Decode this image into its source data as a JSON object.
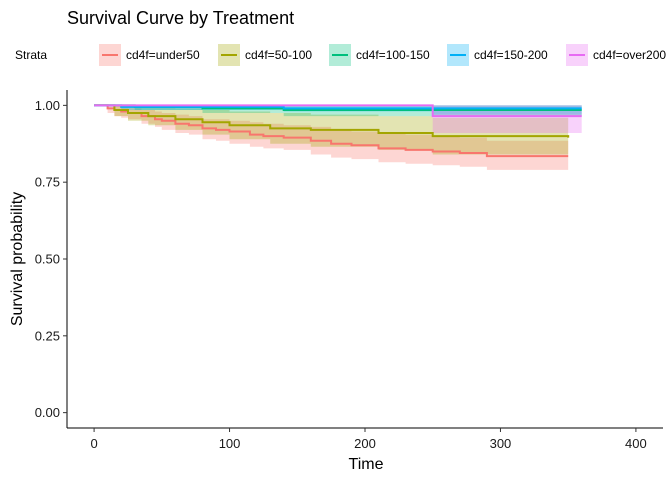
{
  "chart_data": {
    "type": "line",
    "subtype": "kaplan-meier survival curve with confidence bands",
    "title": "Survival Curve by Treatment",
    "xlabel": "Time",
    "ylabel": "Survival probability",
    "xlim": [
      -20,
      420
    ],
    "ylim": [
      -0.05,
      1.05
    ],
    "xticks": [
      0,
      100,
      200,
      300,
      400
    ],
    "yticks": [
      0.0,
      0.25,
      0.5,
      0.75,
      1.0
    ],
    "ytick_labels": [
      "0.00",
      "0.25",
      "0.50",
      "0.75",
      "1.00"
    ],
    "grid": false,
    "legend": {
      "title": "Strata",
      "position": "top"
    },
    "series": [
      {
        "name": "cd4f=under50",
        "color": "#F8766D",
        "time": [
          0,
          10,
          15,
          20,
          25,
          35,
          45,
          50,
          60,
          70,
          80,
          90,
          100,
          115,
          125,
          140,
          160,
          175,
          190,
          210,
          230,
          250,
          270,
          290,
          350
        ],
        "surv": [
          1.0,
          0.99,
          0.985,
          0.98,
          0.975,
          0.965,
          0.955,
          0.95,
          0.94,
          0.935,
          0.925,
          0.92,
          0.915,
          0.905,
          0.9,
          0.895,
          0.885,
          0.875,
          0.87,
          0.86,
          0.855,
          0.85,
          0.845,
          0.835,
          0.835
        ],
        "lower": [
          1.0,
          0.975,
          0.965,
          0.96,
          0.955,
          0.94,
          0.93,
          0.92,
          0.91,
          0.905,
          0.89,
          0.885,
          0.875,
          0.865,
          0.86,
          0.855,
          0.84,
          0.83,
          0.825,
          0.815,
          0.81,
          0.805,
          0.8,
          0.79,
          0.79
        ],
        "upper": [
          1.0,
          1.0,
          1.0,
          0.995,
          0.99,
          0.985,
          0.98,
          0.975,
          0.97,
          0.965,
          0.955,
          0.955,
          0.95,
          0.945,
          0.94,
          0.935,
          0.93,
          0.92,
          0.915,
          0.91,
          0.905,
          0.9,
          0.895,
          0.885,
          0.885
        ]
      },
      {
        "name": "cd4f=50-100",
        "color": "#A3A500",
        "time": [
          0,
          15,
          25,
          40,
          60,
          80,
          100,
          130,
          160,
          210,
          250,
          350
        ],
        "surv": [
          1.0,
          0.985,
          0.975,
          0.965,
          0.955,
          0.945,
          0.935,
          0.925,
          0.92,
          0.91,
          0.9,
          0.895
        ],
        "lower": [
          1.0,
          0.965,
          0.95,
          0.935,
          0.92,
          0.905,
          0.89,
          0.875,
          0.865,
          0.855,
          0.84,
          0.835
        ],
        "upper": [
          1.0,
          1.0,
          1.0,
          0.995,
          0.99,
          0.985,
          0.98,
          0.975,
          0.97,
          0.965,
          0.96,
          0.955
        ]
      },
      {
        "name": "cd4f=100-150",
        "color": "#00BF7D",
        "time": [
          0,
          30,
          80,
          140,
          360
        ],
        "surv": [
          1.0,
          0.995,
          0.99,
          0.985,
          0.985
        ],
        "lower": [
          1.0,
          0.985,
          0.975,
          0.965,
          0.965
        ],
        "upper": [
          1.0,
          1.0,
          1.0,
          1.0,
          1.0
        ]
      },
      {
        "name": "cd4f=150-200",
        "color": "#00B0F6",
        "time": [
          0,
          20,
          140,
          250,
          360
        ],
        "surv": [
          1.0,
          0.995,
          0.99,
          0.99,
          0.99
        ],
        "lower": [
          1.0,
          0.985,
          0.98,
          0.97,
          0.97
        ],
        "upper": [
          1.0,
          1.0,
          1.0,
          1.0,
          1.0
        ]
      },
      {
        "name": "cd4f=over200",
        "color": "#E76BF3",
        "time": [
          0,
          250,
          360
        ],
        "surv": [
          1.0,
          0.965,
          0.965
        ],
        "lower": [
          1.0,
          0.91,
          0.91
        ],
        "upper": [
          1.0,
          1.0,
          1.0
        ]
      }
    ]
  }
}
